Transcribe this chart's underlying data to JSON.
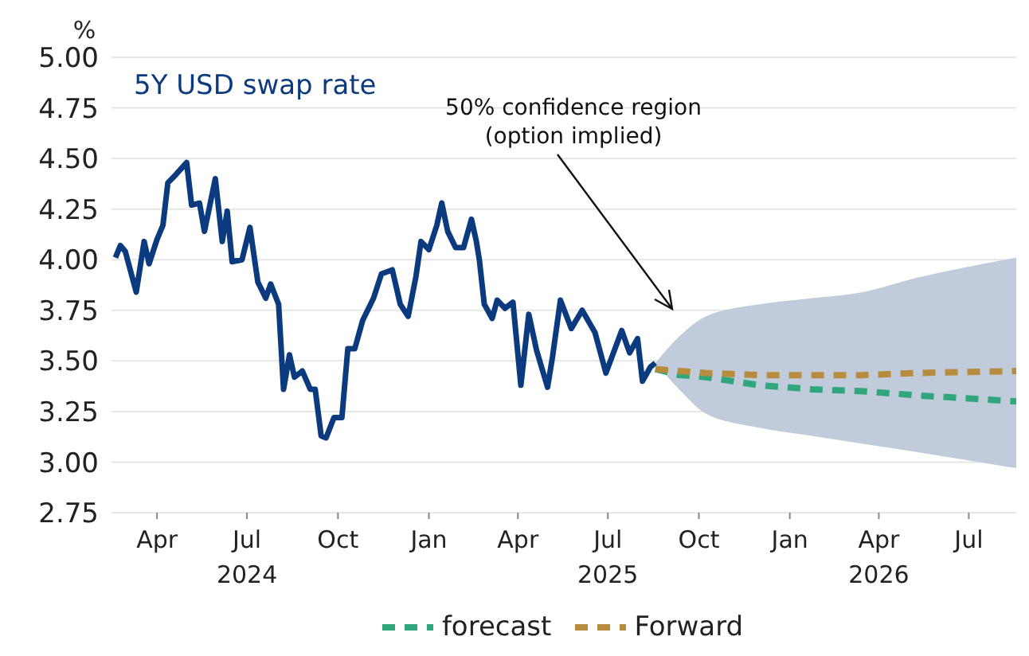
{
  "chart_data": {
    "type": "line",
    "ylabel": "%",
    "ylim": [
      2.75,
      5.0
    ],
    "yticks": [
      {
        "value": 2.75,
        "label": "2.75"
      },
      {
        "value": 3.0,
        "label": "3.00"
      },
      {
        "value": 3.25,
        "label": "3.25"
      },
      {
        "value": 3.5,
        "label": "3.50"
      },
      {
        "value": 3.75,
        "label": "3.75"
      },
      {
        "value": 4.0,
        "label": "4.00"
      },
      {
        "value": 4.25,
        "label": "4.25"
      },
      {
        "value": 4.5,
        "label": "4.50"
      },
      {
        "value": 4.75,
        "label": "4.75"
      },
      {
        "value": 5.0,
        "label": "5.00"
      }
    ],
    "xlim": [
      "2024-02-15",
      "2026-08-18"
    ],
    "xticks": [
      {
        "value": "2024-04-01",
        "label": "Apr"
      },
      {
        "value": "2024-07-01",
        "label": "Jul\n2024"
      },
      {
        "value": "2024-10-01",
        "label": "Oct"
      },
      {
        "value": "2025-01-01",
        "label": "Jan"
      },
      {
        "value": "2025-04-01",
        "label": "Apr"
      },
      {
        "value": "2025-07-01",
        "label": "Jul\n2025"
      },
      {
        "value": "2025-10-01",
        "label": "Oct"
      },
      {
        "value": "2026-01-01",
        "label": "Jan"
      },
      {
        "value": "2026-04-01",
        "label": "Apr\n2026"
      },
      {
        "value": "2026-07-01",
        "label": "Jul"
      }
    ],
    "grid": "y",
    "legend": "bottom",
    "marker": "none",
    "annotations": [
      "50% confidence region\n(option implied)"
    ],
    "series": [
      {
        "name": "5Y USD swap rate",
        "color": "#0b3a7e",
        "line_style": "solid",
        "x": [
          "2024-02-19",
          "2024-02-24",
          "2024-02-29",
          "2024-03-11",
          "2024-03-19",
          "2024-03-24",
          "2024-04-01",
          "2024-04-07",
          "2024-04-12",
          "2024-04-20",
          "2024-05-01",
          "2024-05-06",
          "2024-05-14",
          "2024-05-19",
          "2024-05-30",
          "2024-06-06",
          "2024-06-11",
          "2024-06-16",
          "2024-06-26",
          "2024-07-04",
          "2024-07-12",
          "2024-07-20",
          "2024-07-25",
          "2024-08-02",
          "2024-08-07",
          "2024-08-13",
          "2024-08-18",
          "2024-08-26",
          "2024-09-03",
          "2024-09-08",
          "2024-09-14",
          "2024-09-19",
          "2024-09-27",
          "2024-10-05",
          "2024-10-11",
          "2024-10-18",
          "2024-10-26",
          "2024-11-06",
          "2024-11-14",
          "2024-11-25",
          "2024-12-03",
          "2024-12-11",
          "2024-12-19",
          "2024-12-24",
          "2025-01-01",
          "2025-01-09",
          "2025-01-14",
          "2025-01-20",
          "2025-01-28",
          "2025-02-05",
          "2025-02-13",
          "2025-02-18",
          "2025-02-21",
          "2025-02-26",
          "2025-03-06",
          "2025-03-11",
          "2025-03-19",
          "2025-03-27",
          "2025-04-04",
          "2025-04-12",
          "2025-04-20",
          "2025-05-01",
          "2025-05-06",
          "2025-05-14",
          "2025-05-25",
          "2025-06-05",
          "2025-06-18",
          "2025-06-29",
          "2025-07-15",
          "2025-07-23",
          "2025-07-31",
          "2025-08-05",
          "2025-08-13",
          "2025-08-18"
        ],
        "values": [
          4.01,
          4.07,
          4.04,
          3.84,
          4.09,
          3.98,
          4.1,
          4.17,
          4.38,
          4.42,
          4.48,
          4.27,
          4.28,
          4.14,
          4.4,
          4.09,
          4.24,
          3.99,
          4.0,
          4.16,
          3.89,
          3.81,
          3.88,
          3.78,
          3.36,
          3.53,
          3.42,
          3.45,
          3.36,
          3.36,
          3.13,
          3.12,
          3.22,
          3.22,
          3.56,
          3.56,
          3.7,
          3.81,
          3.93,
          3.95,
          3.78,
          3.72,
          3.92,
          4.09,
          4.05,
          4.17,
          4.28,
          4.14,
          4.06,
          4.06,
          4.2,
          4.09,
          4.0,
          3.78,
          3.71,
          3.8,
          3.76,
          3.79,
          3.38,
          3.73,
          3.55,
          3.37,
          3.52,
          3.8,
          3.66,
          3.75,
          3.64,
          3.44,
          3.65,
          3.54,
          3.61,
          3.4,
          3.47,
          3.49
        ]
      },
      {
        "name": "forecast",
        "color": "#2fa77a",
        "line_style": "dashed",
        "x": [
          "2025-08-18",
          "2025-09-11",
          "2025-10-08",
          "2025-12-01",
          "2026-01-23",
          "2026-03-16",
          "2026-05-09",
          "2026-08-18"
        ],
        "values": [
          3.46,
          3.43,
          3.42,
          3.38,
          3.36,
          3.35,
          3.33,
          3.3
        ]
      },
      {
        "name": "Forward",
        "color": "#b88c3e",
        "line_style": "dashed",
        "x": [
          "2025-08-18",
          "2025-09-11",
          "2025-10-08",
          "2025-12-01",
          "2026-01-23",
          "2026-03-16",
          "2026-05-09",
          "2026-08-18"
        ],
        "values": [
          3.46,
          3.45,
          3.44,
          3.43,
          3.43,
          3.43,
          3.44,
          3.45
        ],
        "lower": [
          3.49,
          3.36,
          3.24,
          3.17,
          3.13,
          3.09,
          3.05,
          2.97
        ],
        "upper": [
          3.49,
          3.62,
          3.72,
          3.78,
          3.81,
          3.84,
          3.91,
          4.01
        ]
      }
    ]
  }
}
